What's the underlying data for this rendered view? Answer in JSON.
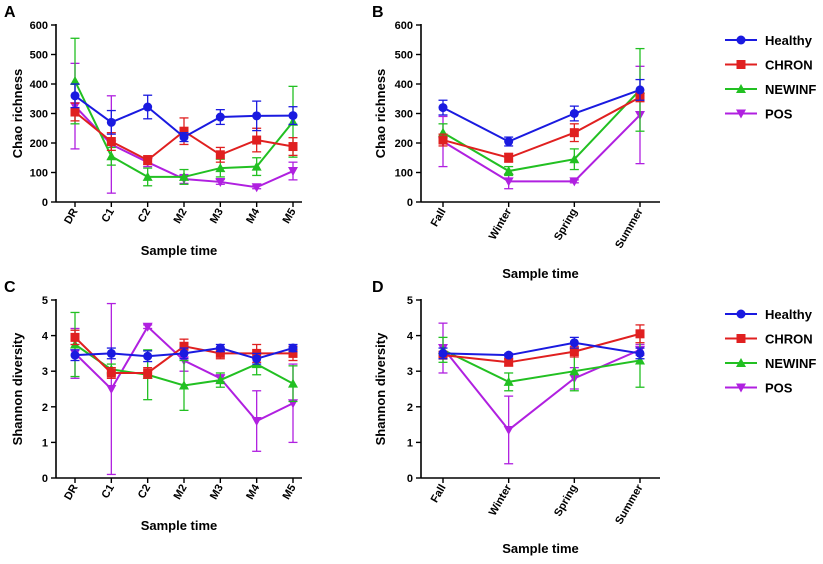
{
  "colors": {
    "Healthy": "#1a1ae0",
    "CHRON": "#e02020",
    "NEWINF": "#22c022",
    "POS": "#b020e0"
  },
  "legend": {
    "entries": [
      "Healthy",
      "CHRON",
      "NEWINF",
      "POS"
    ],
    "markers": [
      "circle",
      "square",
      "triangle-up",
      "triangle-down"
    ]
  },
  "chart_data": [
    {
      "panel": "A",
      "type": "line",
      "xlabel": "Sample time",
      "ylabel": "Chao richness",
      "categories": [
        "DR",
        "C1",
        "C2",
        "M2",
        "M3",
        "M4",
        "M5"
      ],
      "ylim": [
        0,
        600
      ],
      "yticks": [
        0,
        100,
        200,
        300,
        400,
        500,
        600
      ],
      "series": [
        {
          "name": "Healthy",
          "values": [
            360,
            270,
            322,
            220,
            288,
            292,
            293
          ],
          "errors": [
            40,
            40,
            40,
            15,
            25,
            50,
            30
          ]
        },
        {
          "name": "CHRON",
          "values": [
            305,
            205,
            142,
            240,
            160,
            210,
            188
          ],
          "errors": [
            30,
            30,
            15,
            45,
            25,
            40,
            30
          ]
        },
        {
          "name": "NEWINF",
          "values": [
            410,
            155,
            85,
            85,
            115,
            120,
            272
          ],
          "errors": [
            145,
            30,
            30,
            25,
            30,
            30,
            120
          ]
        },
        {
          "name": "POS",
          "values": [
            325,
            195,
            135,
            78,
            68,
            50,
            105
          ],
          "errors": [
            145,
            165,
            15,
            15,
            8,
            5,
            30
          ]
        }
      ]
    },
    {
      "panel": "B",
      "type": "line",
      "xlabel": "Sample time",
      "ylabel": "Chao richness",
      "categories": [
        "Fall",
        "Winter",
        "Spring",
        "Summer"
      ],
      "ylim": [
        0,
        600
      ],
      "yticks": [
        0,
        100,
        200,
        300,
        400,
        500,
        600
      ],
      "series": [
        {
          "name": "Healthy",
          "values": [
            320,
            205,
            300,
            380
          ],
          "errors": [
            25,
            15,
            25,
            35
          ]
        },
        {
          "name": "CHRON",
          "values": [
            210,
            150,
            235,
            355
          ],
          "errors": [
            20,
            15,
            30,
            15
          ]
        },
        {
          "name": "NEWINF",
          "values": [
            235,
            105,
            145,
            380
          ],
          "errors": [
            30,
            15,
            35,
            140
          ]
        },
        {
          "name": "POS",
          "values": [
            205,
            70,
            70,
            295
          ],
          "errors": [
            85,
            25,
            5,
            165
          ]
        }
      ]
    },
    {
      "panel": "C",
      "type": "line",
      "xlabel": "Sample time",
      "ylabel": "Shannon diversity",
      "categories": [
        "DR",
        "C1",
        "C2",
        "M2",
        "M3",
        "M4",
        "M5"
      ],
      "ylim": [
        0,
        5
      ],
      "yticks": [
        0,
        1,
        2,
        3,
        4,
        5
      ],
      "series": [
        {
          "name": "Healthy",
          "values": [
            3.45,
            3.5,
            3.42,
            3.5,
            3.65,
            3.35,
            3.65
          ],
          "errors": [
            0.15,
            0.15,
            0.15,
            0.15,
            0.1,
            0.15,
            0.1
          ]
        },
        {
          "name": "CHRON",
          "values": [
            3.95,
            2.95,
            2.95,
            3.7,
            3.5,
            3.5,
            3.5
          ],
          "errors": [
            0.2,
            0.15,
            0.15,
            0.2,
            0.15,
            0.25,
            0.2
          ]
        },
        {
          "name": "NEWINF",
          "values": [
            3.75,
            3.05,
            2.9,
            2.6,
            2.75,
            3.2,
            2.65
          ],
          "errors": [
            0.9,
            0.15,
            0.7,
            0.7,
            0.2,
            0.3,
            0.5
          ]
        },
        {
          "name": "POS",
          "values": [
            3.5,
            2.5,
            4.25,
            3.3,
            2.8,
            1.6,
            2.1
          ],
          "errors": [
            0.7,
            2.4,
            0.05,
            0.3,
            0.1,
            0.85,
            1.1
          ]
        }
      ]
    },
    {
      "panel": "D",
      "type": "line",
      "xlabel": "Sample time",
      "ylabel": "Shannon diversity",
      "categories": [
        "Fall",
        "Winter",
        "Spring",
        "Summer"
      ],
      "ylim": [
        0,
        5
      ],
      "yticks": [
        0,
        1,
        2,
        3,
        4,
        5
      ],
      "series": [
        {
          "name": "Healthy",
          "values": [
            3.5,
            3.45,
            3.8,
            3.5
          ],
          "errors": [
            0.15,
            0.05,
            0.15,
            0.15
          ]
        },
        {
          "name": "CHRON",
          "values": [
            3.45,
            3.25,
            3.55,
            4.05
          ],
          "errors": [
            0.1,
            0.1,
            0.15,
            0.25
          ]
        },
        {
          "name": "NEWINF",
          "values": [
            3.6,
            2.7,
            3.0,
            3.3
          ],
          "errors": [
            0.35,
            0.25,
            0.55,
            0.75
          ]
        },
        {
          "name": "POS",
          "values": [
            3.65,
            1.35,
            2.8,
            3.6
          ],
          "errors": [
            0.7,
            0.95,
            0.3,
            0.15
          ]
        }
      ]
    }
  ]
}
